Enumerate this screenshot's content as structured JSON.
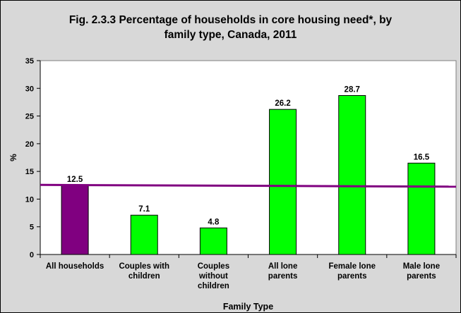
{
  "chart_data": {
    "type": "bar",
    "title": "Fig. 2.3.3 Percentage of households in core housing need*, by family type, Canada, 2011",
    "title_lines": [
      "Fig. 2.3.3 Percentage of households in core housing need*, by",
      "family type, Canada, 2011"
    ],
    "xlabel": "Family Type",
    "ylabel": "%",
    "ylim": [
      0,
      35
    ],
    "yticks": [
      0,
      5,
      10,
      15,
      20,
      25,
      30,
      35
    ],
    "grid": false,
    "legend": "none",
    "categories": [
      [
        "All households"
      ],
      [
        "Couples with",
        "children"
      ],
      [
        "Couples",
        "without",
        "children"
      ],
      [
        "All lone",
        "parents"
      ],
      [
        "Female lone",
        "parents"
      ],
      [
        "Male lone",
        "parents"
      ]
    ],
    "values": [
      12.5,
      7.1,
      4.8,
      26.2,
      28.7,
      16.5
    ],
    "value_labels": [
      "12.5",
      "7.1",
      "4.8",
      "26.2",
      "28.7",
      "16.5"
    ],
    "bar_colors": [
      "#800080",
      "#00ff00",
      "#00ff00",
      "#00ff00",
      "#00ff00",
      "#00ff00"
    ],
    "reference_line": {
      "value": 12.5,
      "color": "#800080"
    },
    "plot_background": "#ffffff",
    "chart_background": "#d8d8d8"
  }
}
